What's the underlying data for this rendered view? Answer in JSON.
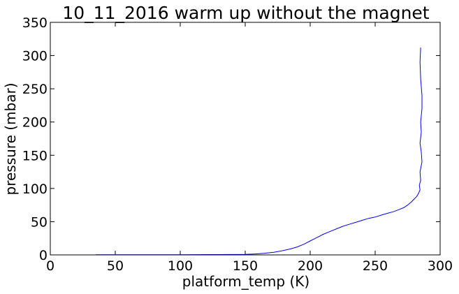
{
  "chart_data": {
    "type": "line",
    "title": "10_11_2016 warm up without the magnet",
    "xlabel": "platform_temp (K)",
    "ylabel": "pressure (mbar)",
    "xlim": [
      0,
      300
    ],
    "ylim": [
      0,
      350
    ],
    "xticks": [
      0,
      50,
      100,
      150,
      200,
      250,
      300
    ],
    "yticks": [
      0,
      50,
      100,
      150,
      200,
      250,
      300,
      350
    ],
    "xtick_labels": [
      "0",
      "50",
      "100",
      "150",
      "200",
      "250",
      "300"
    ],
    "ytick_labels": [
      "0",
      "50",
      "100",
      "150",
      "200",
      "250",
      "300",
      "350"
    ],
    "grid": false,
    "legend": "none",
    "color": "#0000ff",
    "series": [
      {
        "x": [
          35,
          60,
          100,
          140,
          150,
          158,
          165,
          172,
          178,
          185,
          190,
          195,
          200,
          205,
          210,
          215,
          220,
          225,
          230,
          235,
          240,
          245,
          250,
          255,
          260,
          264,
          268,
          272,
          275,
          278,
          280,
          282,
          283.5,
          284.5,
          284,
          285,
          284.5,
          286,
          285.5,
          284.5,
          285.5,
          285,
          286,
          286,
          285,
          284.5,
          285
        ],
        "y": [
          0.2,
          0.2,
          0.3,
          0.6,
          0.8,
          1.5,
          2.5,
          4,
          6,
          9,
          12,
          16,
          21,
          26,
          31,
          35,
          39,
          43,
          46,
          49,
          52,
          55,
          57,
          60,
          63,
          65,
          68,
          71,
          75,
          80,
          84,
          88,
          93,
          98,
          105,
          112,
          125,
          140,
          155,
          168,
          185,
          200,
          220,
          240,
          265,
          290,
          312
        ]
      }
    ]
  }
}
